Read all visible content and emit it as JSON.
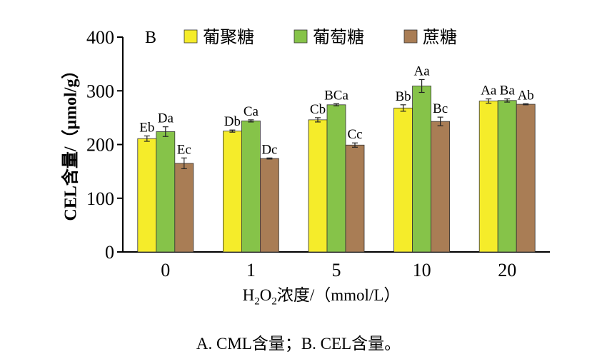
{
  "chart_data": {
    "type": "bar",
    "panel_label": "B",
    "categories": [
      "0",
      "1",
      "5",
      "10",
      "20"
    ],
    "series": [
      {
        "name": "葡聚糖",
        "color": "#f5ec2a",
        "values": [
          211,
          225,
          246,
          268,
          281
        ],
        "errors": [
          5,
          2,
          4,
          6,
          4
        ],
        "labels": [
          "Eb",
          "Db",
          "Cb",
          "Bb",
          "Aa"
        ]
      },
      {
        "name": "葡萄糖",
        "color": "#86c349",
        "values": [
          224,
          244,
          274,
          309,
          282
        ],
        "errors": [
          9,
          2,
          2,
          12,
          3
        ],
        "labels": [
          "Da",
          "Ca",
          "BCa",
          "Aa",
          "Ba"
        ]
      },
      {
        "name": "蔗糖",
        "color": "#a97d55",
        "values": [
          165,
          174,
          199,
          243,
          275
        ],
        "errors": [
          10,
          1,
          4,
          8,
          1
        ],
        "labels": [
          "Ec",
          "Dc",
          "Cc",
          "Bc",
          "Ab"
        ]
      }
    ],
    "xlabel_main": "H",
    "xlabel_sub1": "2",
    "xlabel_mid": "O",
    "xlabel_sub2": "2",
    "xlabel_rest": "浓度/（mmol/L）",
    "ylabel": "CEL含量/（μmol/g）",
    "ylim": [
      0,
      400
    ],
    "yticks": [
      "0",
      "100",
      "200",
      "300",
      "400"
    ],
    "legend_position": "top",
    "grid": false
  },
  "caption": "A. CML含量；B. CEL含量。"
}
